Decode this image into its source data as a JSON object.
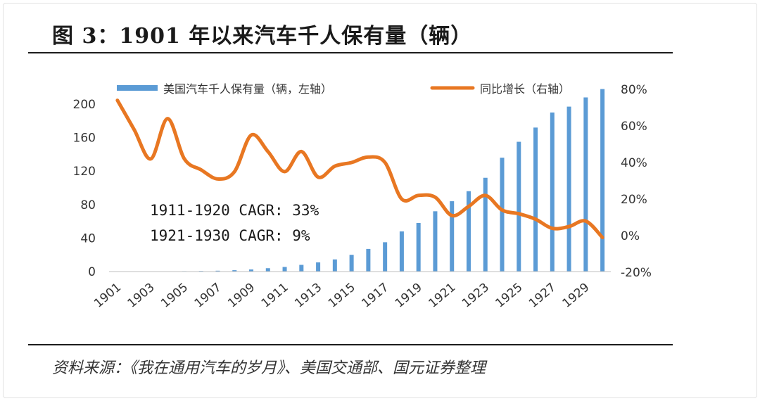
{
  "title": "图 3：1901 年以来汽车千人保有量（辆）",
  "source": "资料来源：《我在通用汽车的岁月》、美国交通部、国元证券整理",
  "chart_data": {
    "type": "bar+line",
    "legend": {
      "bar_label": "美国汽车千人保有量（辆，左轴）",
      "line_label": "同比增长（右轴）",
      "placement": "top"
    },
    "annotations": [
      "1911-1920 CAGR: 33%",
      "1921-1930 CAGR: 9%"
    ],
    "categories": [
      1901,
      1902,
      1903,
      1904,
      1905,
      1906,
      1907,
      1908,
      1909,
      1910,
      1911,
      1912,
      1913,
      1914,
      1915,
      1916,
      1917,
      1918,
      1919,
      1920,
      1921,
      1922,
      1923,
      1924,
      1925,
      1926,
      1927,
      1928,
      1929,
      1930
    ],
    "x_tick_labels": [
      "1901",
      "1903",
      "1905",
      "1907",
      "1909",
      "1911",
      "1913",
      "1915",
      "1917",
      "1919",
      "1921",
      "1923",
      "1925",
      "1927",
      "1929"
    ],
    "left_axis": {
      "min": 0,
      "max": 220,
      "ticks": [
        0,
        40,
        80,
        120,
        160,
        200
      ]
    },
    "right_axis": {
      "min": -20,
      "max": 80,
      "ticks": [
        -20,
        0,
        20,
        40,
        60,
        80
      ],
      "tick_labels": [
        "-20%",
        "0%",
        "20%",
        "40%",
        "60%",
        "80%"
      ]
    },
    "series": [
      {
        "name": "美国汽车千人保有量（辆，左轴）",
        "type": "bar",
        "axis": "left",
        "color": "#5b9bd5",
        "values": [
          0.1,
          0.15,
          0.2,
          0.3,
          0.5,
          0.7,
          1.0,
          1.6,
          2.5,
          4.0,
          5.5,
          8.0,
          11,
          14.5,
          20,
          27,
          35,
          48,
          58,
          72,
          84,
          96,
          112,
          136,
          155,
          172,
          190,
          197,
          208,
          218
        ]
      },
      {
        "name": "同比增长（右轴）",
        "type": "line",
        "axis": "right",
        "color": "#e87722",
        "values": [
          74,
          58,
          42,
          64,
          42,
          36,
          31,
          35,
          55,
          46,
          35,
          46,
          32,
          38,
          40,
          43,
          40,
          20,
          22,
          21,
          11,
          16,
          22,
          14,
          12,
          9,
          4,
          5,
          8,
          -1
        ]
      }
    ]
  }
}
